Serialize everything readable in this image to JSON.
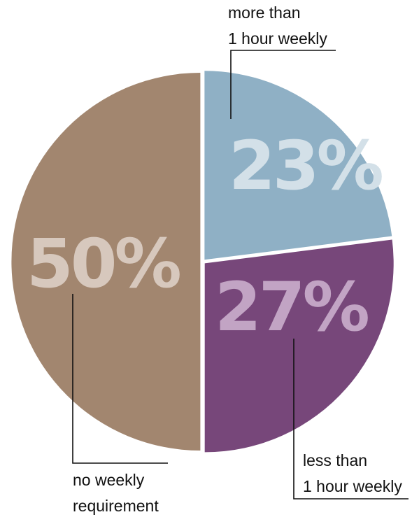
{
  "chart_data": {
    "type": "pie",
    "title": "",
    "slices": [
      {
        "label_lines": [
          "more than",
          "1 hour weekly"
        ],
        "value": 23,
        "value_label": "23%",
        "color": "#8fb0c5",
        "text_color": "#d3e0e8"
      },
      {
        "label_lines": [
          "less than",
          "1 hour weekly"
        ],
        "value": 27,
        "value_label": "27%",
        "color": "#77477a",
        "text_color": "#c2a4c4"
      },
      {
        "label_lines": [
          "no weekly",
          "requirement"
        ],
        "value": 50,
        "value_label": "50%",
        "color": "#a2866f",
        "text_color": "#d7c8bd"
      }
    ]
  }
}
